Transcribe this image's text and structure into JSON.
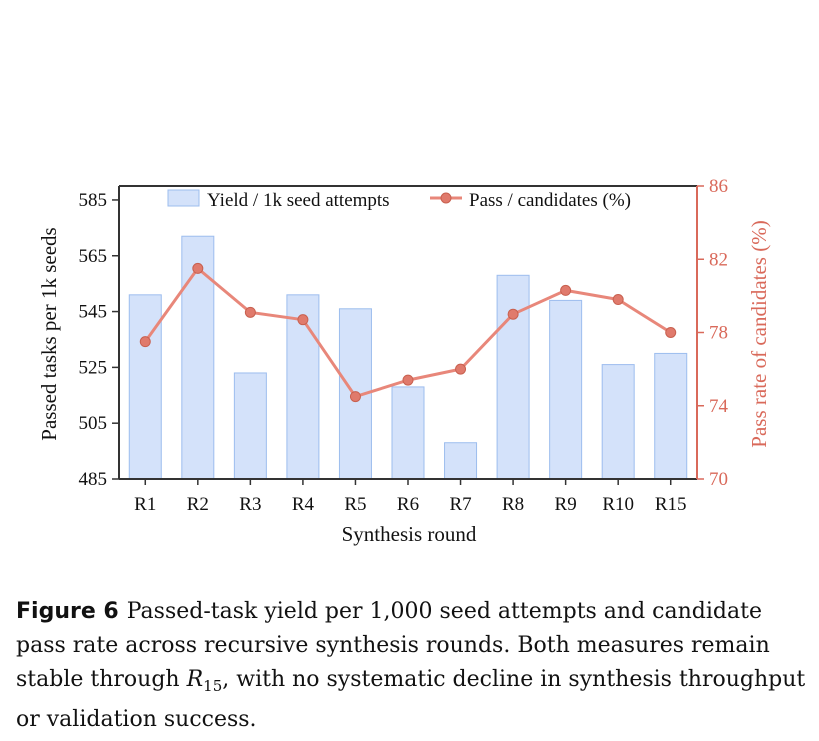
{
  "chart_data": {
    "type": "bar+line",
    "categories": [
      "R1",
      "R2",
      "R3",
      "R4",
      "R5",
      "R6",
      "R7",
      "R8",
      "R9",
      "R10",
      "R15"
    ],
    "series": [
      {
        "name": "Yield / 1k seed attempts",
        "type": "bar",
        "axis": "left",
        "values": [
          551,
          572,
          523,
          551,
          546,
          518,
          498,
          558,
          549,
          526,
          530
        ]
      },
      {
        "name": "Pass / candidates (%)",
        "type": "line",
        "axis": "right",
        "values": [
          77.5,
          81.5,
          79.1,
          78.7,
          74.5,
          75.4,
          76.0,
          79.0,
          80.3,
          79.8,
          78.0
        ]
      }
    ],
    "xlabel": "Synthesis round",
    "ylabel": "Passed tasks per 1k seeds",
    "y2label": "Pass rate of candidates (%)",
    "ylim": [
      485,
      590
    ],
    "yticks": [
      485,
      505,
      525,
      545,
      565,
      585
    ],
    "y2lim": [
      70,
      86
    ],
    "y2ticks": [
      70,
      74,
      78,
      82,
      86
    ],
    "legend_position": "top",
    "grid": false,
    "colors": {
      "bar_fill": "#d4e2fa",
      "bar_stroke": "#9dbdee",
      "line": "#e8877a",
      "marker": "#e07a6c",
      "right_axis": "#d9695a"
    }
  },
  "caption": {
    "label": "Figure 6",
    "text_before": "Passed-task yield per 1,000 seed attempts and candidate pass rate across recursive synthesis rounds. Both measures remain stable through ",
    "math_base": "R",
    "math_sub": "15",
    "text_after": ", with no systematic decline in synthesis throughput or validation success."
  }
}
